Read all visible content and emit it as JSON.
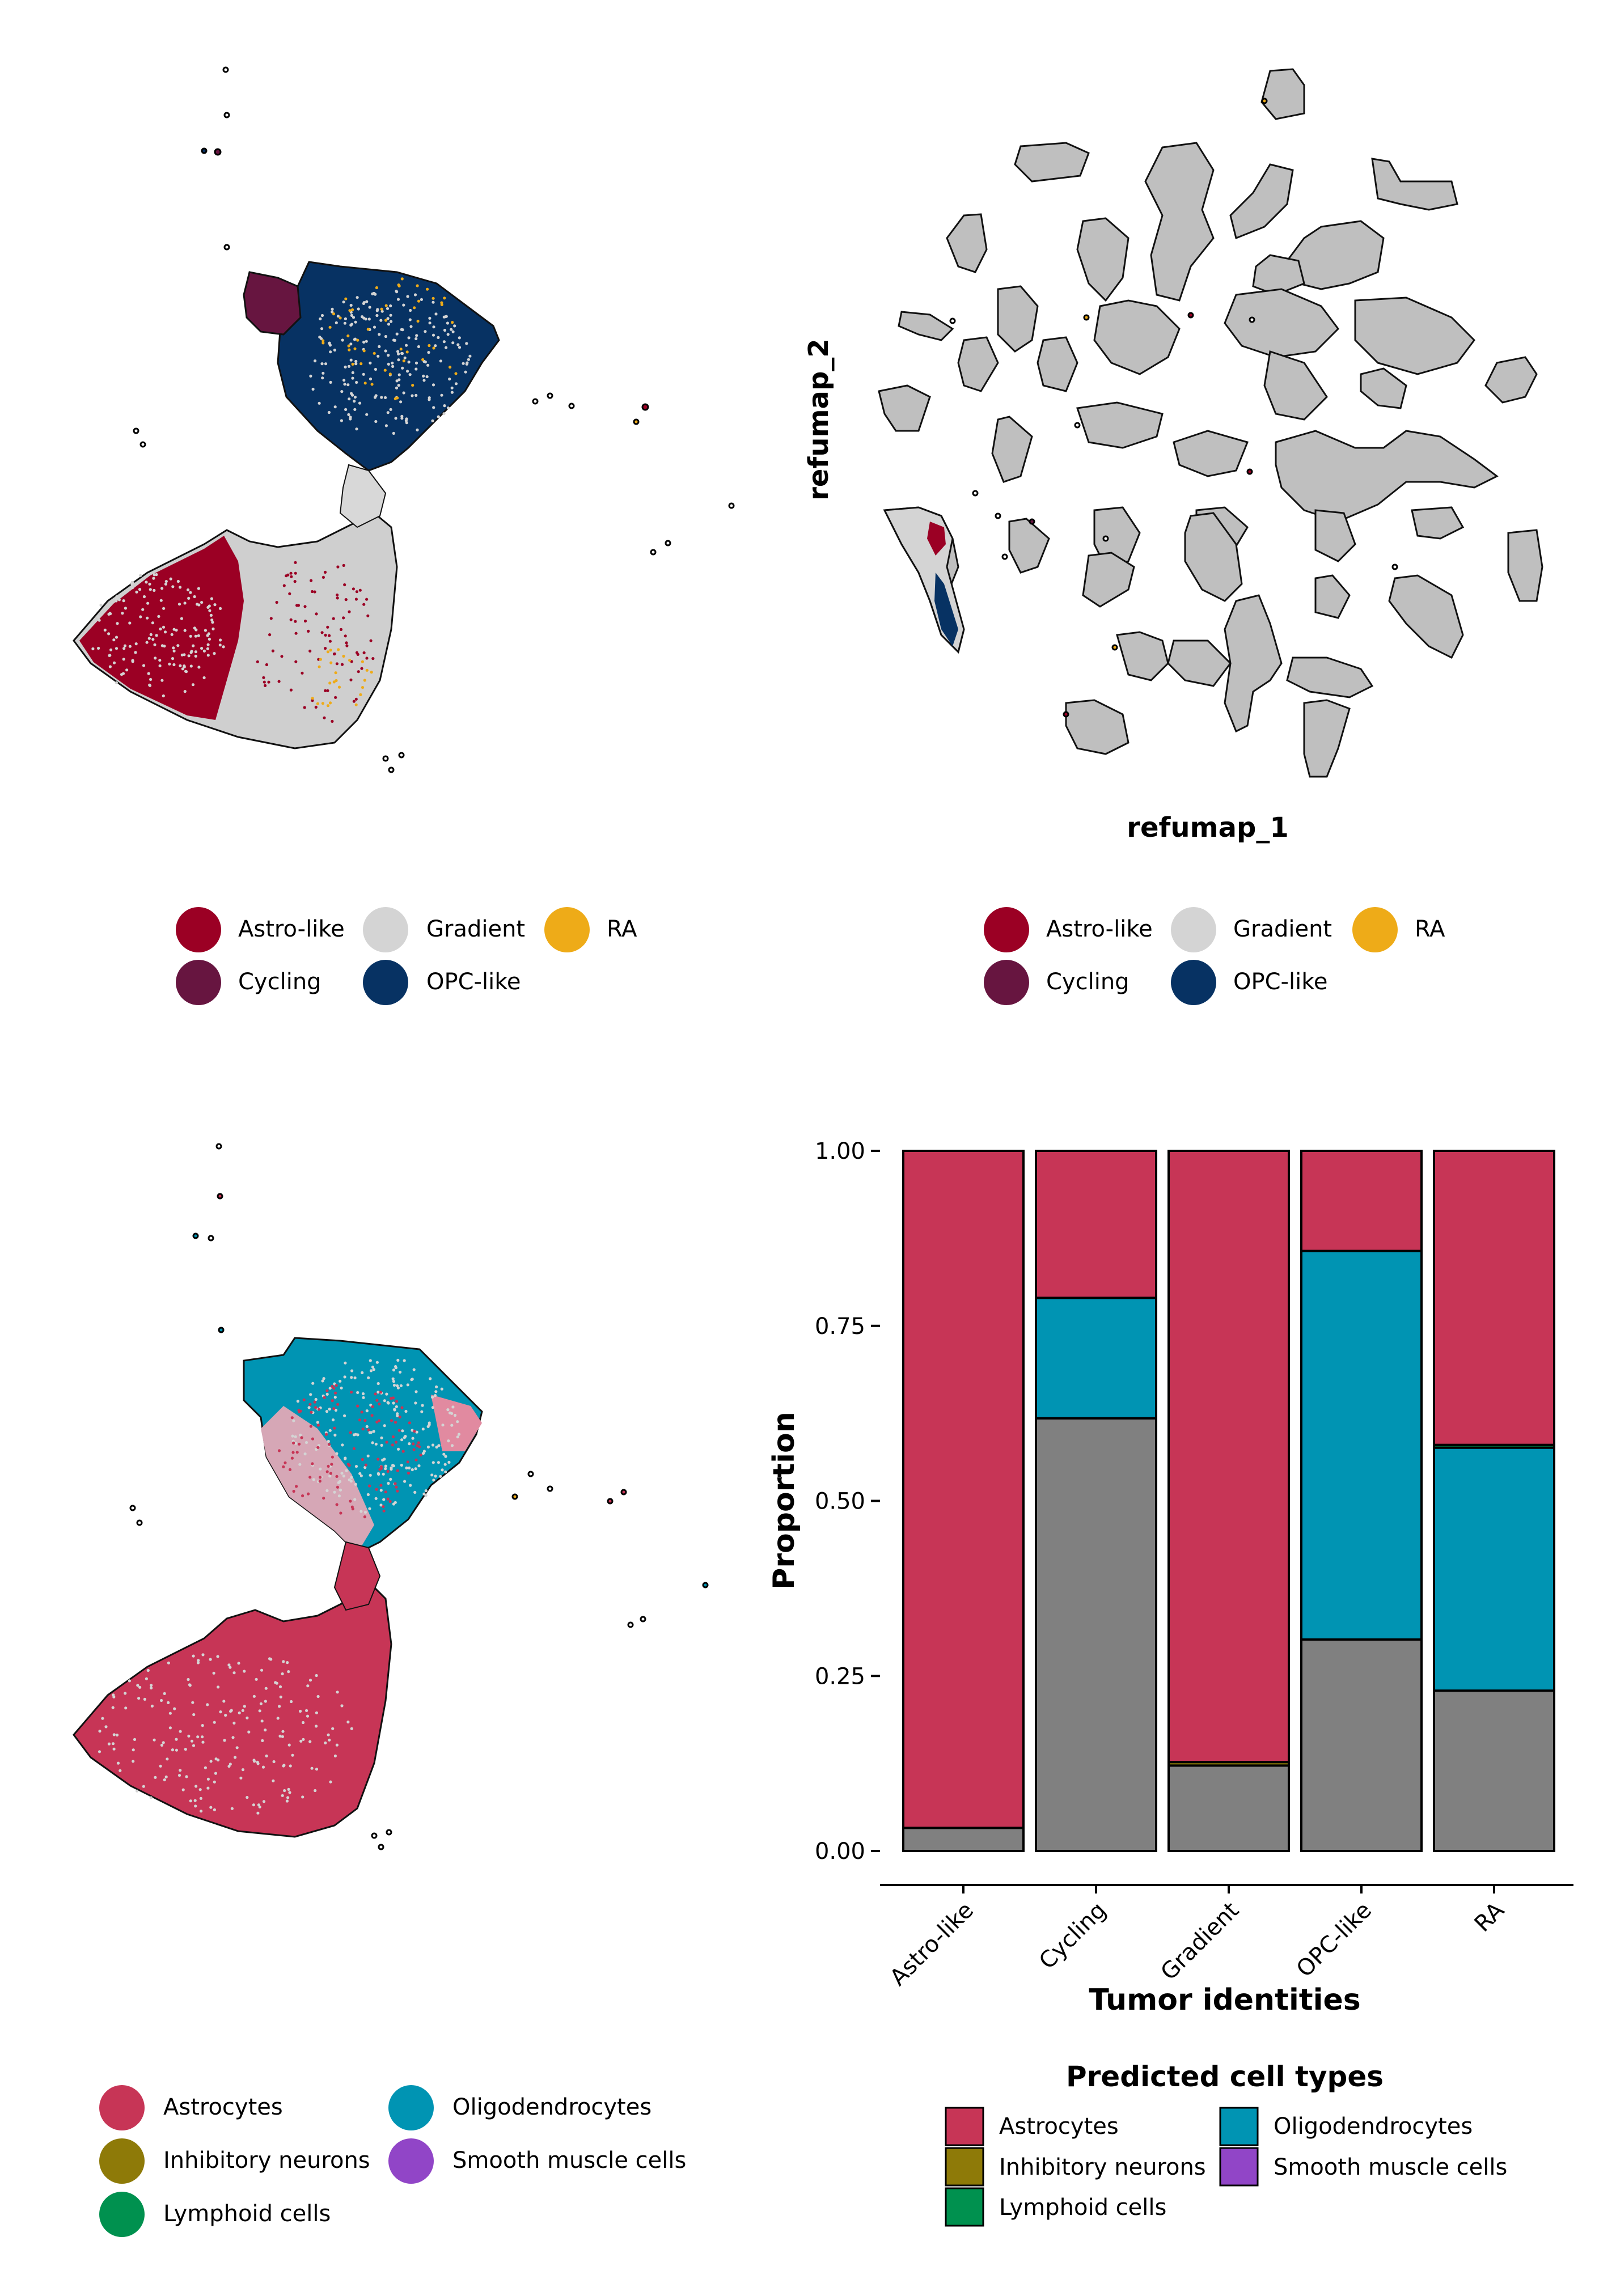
{
  "panels": {
    "top_left": {
      "legend": [
        "Astro-like",
        "Gradient",
        "RA",
        "Cycling",
        "OPC-like"
      ]
    },
    "top_right": {
      "xlabel": "refumap_1",
      "ylabel": "refumap_2",
      "legend": [
        "Astro-like",
        "Gradient",
        "RA",
        "Cycling",
        "OPC-like"
      ]
    },
    "bottom_left": {
      "legend": [
        "Astrocytes",
        "Oligodendrocytes",
        "Inhibitory neurons",
        "Smooth muscle cells",
        "Lymphoid cells"
      ]
    }
  },
  "identity_colors": {
    "Astro-like": "#9b0024",
    "Gradient": "#d4d4d4",
    "RA": "#eeab18",
    "Cycling": "#671540",
    "OPC-like": "#073263"
  },
  "celltype_colors": {
    "Astrocytes": "#c73556",
    "Oligodendrocytes": "#0094b3",
    "Inhibitory neurons": "#8e7a08",
    "Smooth muscle cells": "#9145c7",
    "Lymphoid cells": "#00914f",
    "Unassigned": "#808080"
  },
  "chart_data": {
    "type": "bar",
    "stacked": true,
    "xlabel": "Tumor identities",
    "ylabel": "Proportion",
    "ylim": [
      0,
      1
    ],
    "yticks": [
      "0.00",
      "0.25",
      "0.50",
      "0.75",
      "1.00"
    ],
    "categories": [
      "Astro-like",
      "Cycling",
      "Gradient",
      "OPC-like",
      "RA"
    ],
    "series": [
      {
        "key": "Unassigned",
        "values": [
          0.033,
          0.618,
          0.122,
          0.302,
          0.229
        ]
      },
      {
        "key": "Inhibitory neurons",
        "values": [
          0,
          0,
          0.005,
          0,
          0
        ]
      },
      {
        "key": "Oligodendrocytes",
        "values": [
          0,
          0.172,
          0,
          0.555,
          0.347
        ]
      },
      {
        "key": "Lymphoid cells",
        "values": [
          0,
          0,
          0,
          0,
          0.004
        ]
      },
      {
        "key": "Astrocytes",
        "values": [
          0.967,
          0.21,
          0.873,
          0.143,
          0.42
        ]
      }
    ],
    "legend": {
      "title": "Predicted cell types",
      "items": [
        "Astrocytes",
        "Oligodendrocytes",
        "Inhibitory neurons",
        "Smooth muscle cells",
        "Lymphoid cells"
      ]
    }
  }
}
